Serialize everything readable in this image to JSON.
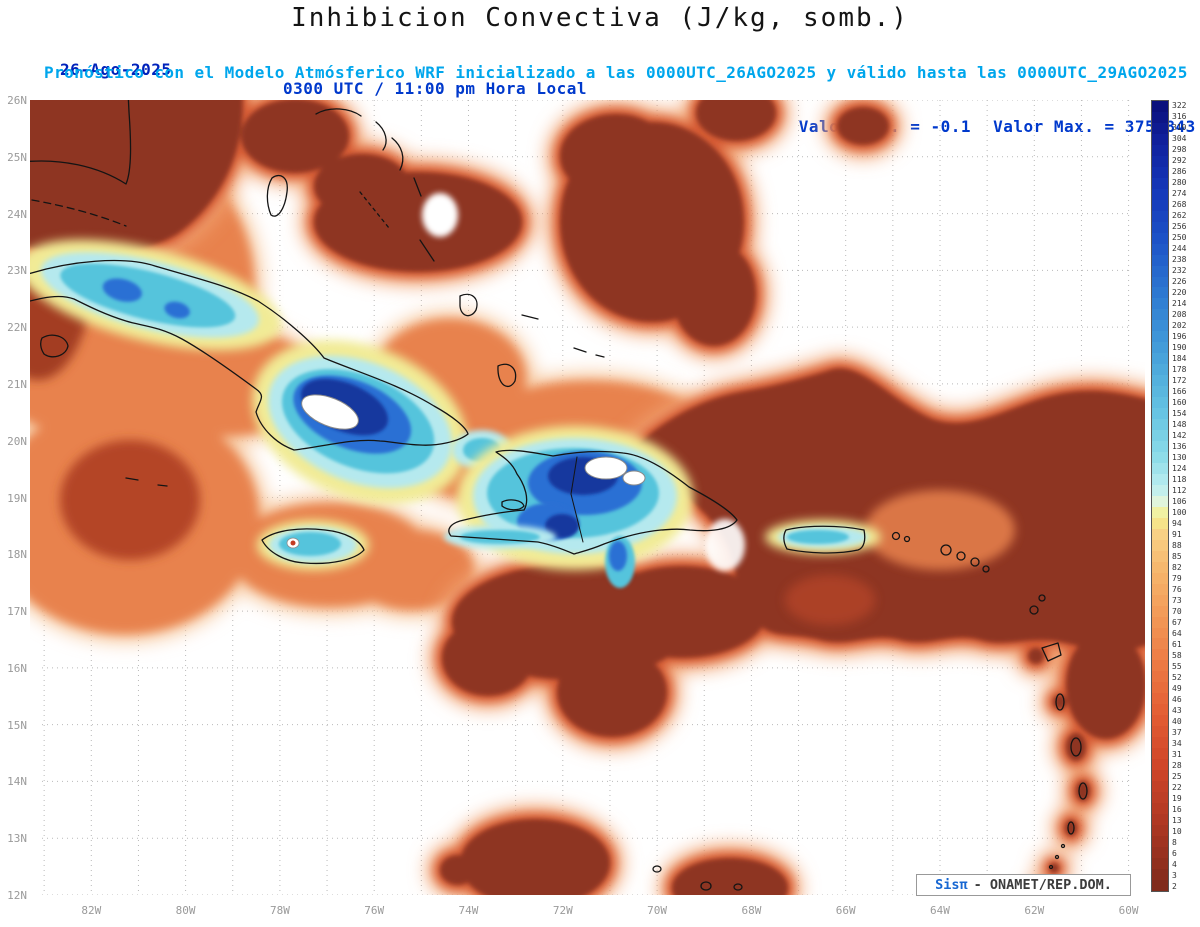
{
  "header": {
    "title": "Inhibicion Convectiva (J/kg, somb.)",
    "date": "26-Ago-2025",
    "time": "0300 UTC / 11:00 pm Hora Local",
    "min_label": "Valor Min. = -0.1",
    "max_label": "Valor Max. = 375.843",
    "forecast_line": "Pronóstico con el Modelo Atmósferico WRF inicializado a las 0000UTC_26AGO2025 y válido hasta las 0000UTC_29AGO2025"
  },
  "axes": {
    "lat_labels": [
      "26N",
      "25N",
      "24N",
      "23N",
      "22N",
      "21N",
      "20N",
      "19N",
      "18N",
      "17N",
      "16N",
      "15N",
      "14N",
      "13N",
      "12N"
    ],
    "lon_labels": [
      "82W",
      "80W",
      "78W",
      "76W",
      "74W",
      "72W",
      "70W",
      "68W",
      "66W",
      "64W",
      "62W",
      "60W"
    ]
  },
  "colorbar": {
    "unit": "J/kg",
    "values": [
      322,
      316,
      310,
      304,
      298,
      292,
      286,
      280,
      274,
      268,
      262,
      256,
      250,
      244,
      238,
      232,
      226,
      220,
      214,
      208,
      202,
      196,
      190,
      184,
      178,
      172,
      166,
      160,
      154,
      148,
      142,
      136,
      130,
      124,
      118,
      112,
      106,
      100,
      94,
      91,
      88,
      85,
      82,
      79,
      76,
      73,
      70,
      67,
      64,
      61,
      58,
      55,
      52,
      49,
      46,
      43,
      40,
      37,
      34,
      31,
      28,
      25,
      22,
      19,
      16,
      13,
      10,
      8,
      6,
      4,
      3,
      2
    ],
    "stops": [
      [
        0,
        "#0a0f78"
      ],
      [
        0.05,
        "#10209c"
      ],
      [
        0.11,
        "#1537b8"
      ],
      [
        0.18,
        "#1e55c8"
      ],
      [
        0.25,
        "#2f7cd2"
      ],
      [
        0.32,
        "#45a0da"
      ],
      [
        0.39,
        "#63c2e2"
      ],
      [
        0.45,
        "#8cdbe8"
      ],
      [
        0.49,
        "#bdeef0"
      ],
      [
        0.51,
        "#e6f6d8"
      ],
      [
        0.525,
        "#f4ef8e"
      ],
      [
        0.55,
        "#f8cf84"
      ],
      [
        0.6,
        "#f6b369"
      ],
      [
        0.66,
        "#f29554"
      ],
      [
        0.72,
        "#ec7742"
      ],
      [
        0.78,
        "#e25c33"
      ],
      [
        0.84,
        "#d04629"
      ],
      [
        0.9,
        "#b53a24"
      ],
      [
        0.95,
        "#99311f"
      ],
      [
        1,
        "#7c2a1a"
      ]
    ]
  },
  "map_colors": {
    "field_dominant_brown": "#8e3423",
    "field_orange": "#e8824e",
    "field_yellow_fringe": "#f1eb96",
    "field_cyan": "#55c4dc",
    "field_blue": "#2b6fd4",
    "field_dark_blue": "#18379e",
    "grid_dots": "#b9b9b9",
    "coastline": "#141414"
  },
  "attribution": {
    "system": "Sisπ",
    "org": "- ONAMET/REP.DOM."
  }
}
